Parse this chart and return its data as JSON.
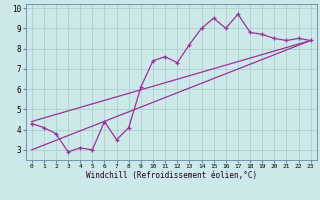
{
  "title": "",
  "xlabel": "Windchill (Refroidissement éolien,°C)",
  "bg_color": "#cce8e8",
  "grid_color": "#aacccc",
  "line_color": "#993399",
  "spine_color": "#6688aa",
  "xlim": [
    -0.5,
    23.5
  ],
  "ylim": [
    2.5,
    10.2
  ],
  "xticks": [
    0,
    1,
    2,
    3,
    4,
    5,
    6,
    7,
    8,
    9,
    10,
    11,
    12,
    13,
    14,
    15,
    16,
    17,
    18,
    19,
    20,
    21,
    22,
    23
  ],
  "yticks": [
    3,
    4,
    5,
    6,
    7,
    8,
    9,
    10
  ],
  "line1_x": [
    0,
    1,
    2,
    3,
    4,
    5,
    6,
    7,
    8,
    9,
    10,
    11,
    12,
    13,
    14,
    15,
    16,
    17,
    18,
    19,
    20,
    21,
    22,
    23
  ],
  "line1_y": [
    4.3,
    4.1,
    3.8,
    2.9,
    3.1,
    3.0,
    4.4,
    3.5,
    4.1,
    6.1,
    7.4,
    7.6,
    7.3,
    8.2,
    9.0,
    9.5,
    9.0,
    9.7,
    8.8,
    8.7,
    8.5,
    8.4,
    8.5,
    8.4
  ],
  "line2_x": [
    0,
    23
  ],
  "line2_y": [
    4.4,
    8.4
  ],
  "line3_x": [
    0,
    23
  ],
  "line3_y": [
    3.0,
    8.4
  ]
}
